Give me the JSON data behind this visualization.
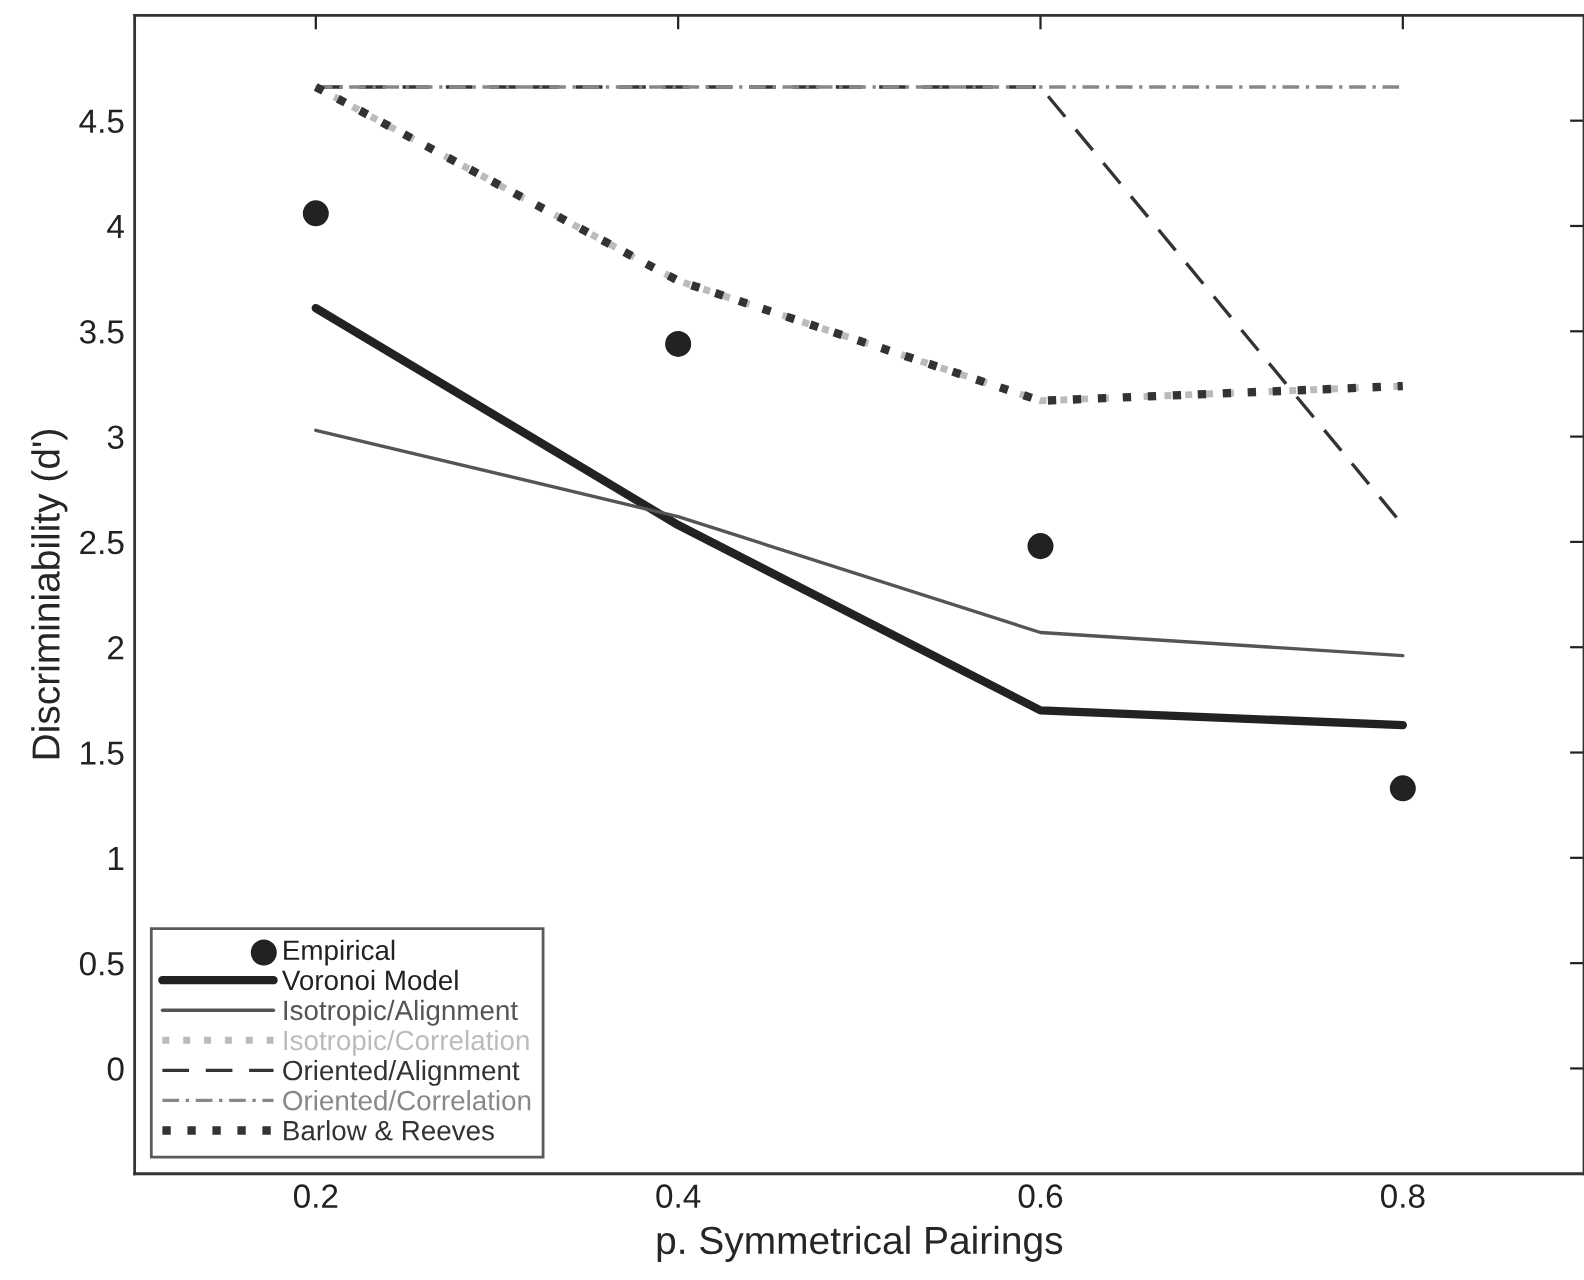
{
  "chart_data": {
    "type": "line",
    "xlabel": "p. Symmetrical Pairings",
    "ylabel": "Discriminiability (d')",
    "x": [
      0.2,
      0.4,
      0.6,
      0.8
    ],
    "series": [
      {
        "name": "Empirical",
        "type": "scatter",
        "marker": "circle",
        "color": "#222222",
        "values": [
          4.06,
          3.44,
          2.48,
          1.33
        ]
      },
      {
        "name": "Voronoi Model",
        "color": "#222222",
        "line_style": "solid",
        "values": [
          3.61,
          2.58,
          1.7,
          1.63
        ]
      },
      {
        "name": "Isotropic/Alignment",
        "color": "#555555",
        "line_style": "solid",
        "values": [
          3.03,
          2.62,
          2.07,
          1.96
        ]
      },
      {
        "name": "Isotropic/Correlation",
        "color": "#bbbbbb",
        "line_style": "dotted",
        "values": [
          4.66,
          3.74,
          3.17,
          3.24
        ]
      },
      {
        "name": "Oriented/Alignment",
        "color": "#333333",
        "line_style": "dashed",
        "values": [
          4.66,
          4.66,
          4.66,
          2.58
        ]
      },
      {
        "name": "Oriented/Correlation",
        "color": "#888888",
        "line_style": "dashdot",
        "values": [
          4.66,
          4.66,
          4.66,
          4.66
        ]
      },
      {
        "name": "Barlow & Reeves",
        "color": "#333333",
        "line_style": "dotted",
        "values": [
          4.66,
          3.74,
          3.17,
          3.24
        ]
      }
    ],
    "xlim": [
      0.1,
      0.9
    ],
    "xticks": [
      0.2,
      0.4,
      0.6,
      0.8
    ],
    "ylim": [
      -0.5,
      5
    ],
    "yticks": [
      0,
      0.5,
      1,
      1.5,
      2,
      2.5,
      3,
      3.5,
      4,
      4.5
    ],
    "grid": false,
    "legend": "bottom left"
  }
}
